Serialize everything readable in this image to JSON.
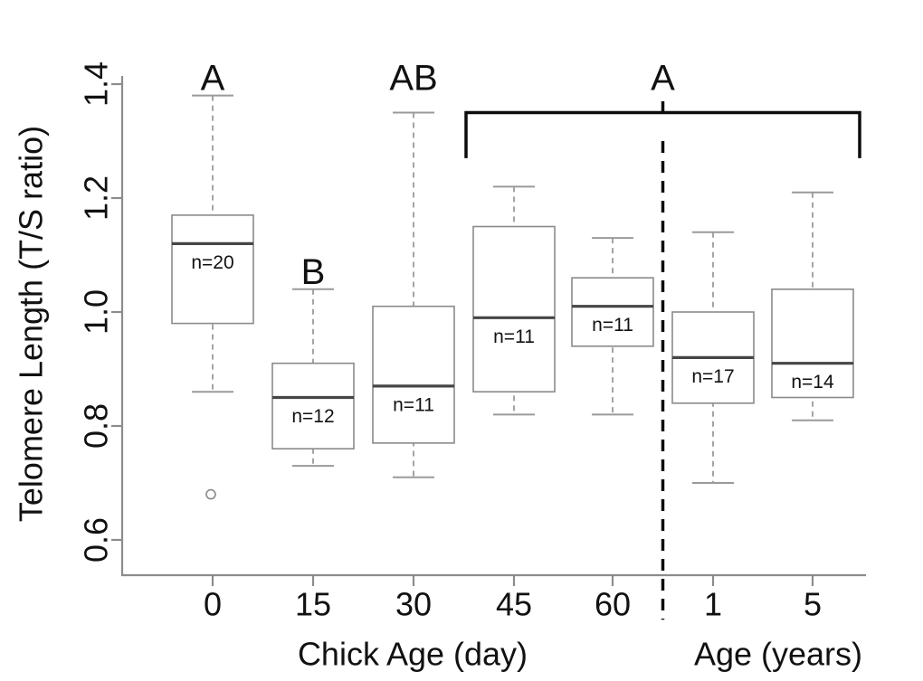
{
  "figure": {
    "background": "#ffffff"
  },
  "chart_data": {
    "type": "boxplot",
    "title": "",
    "ylabel": "Telomere Length (T/S ratio)",
    "xlabel_left": "Chick Age (day)",
    "xlabel_right": "Age (years)",
    "y_ticks": [
      0.6,
      0.8,
      1.0,
      1.2,
      1.4
    ],
    "y_tick_labels": [
      "0.6",
      "0.8",
      "1.0",
      "1.2",
      "1.4"
    ],
    "ylim": [
      0.52,
      1.46
    ],
    "grid": false,
    "legend": null,
    "x_tick_labels": [
      "0",
      "15",
      "30",
      "45",
      "60",
      "1",
      "5"
    ],
    "groups": [
      {
        "name": "chick",
        "axis_title": "Chick Age (day)",
        "box_indices": [
          0,
          1,
          2,
          3,
          4
        ]
      },
      {
        "name": "adult",
        "axis_title": "Age (years)",
        "box_indices": [
          5,
          6
        ]
      }
    ],
    "boxes": [
      {
        "x_label": "0",
        "group": "chick",
        "n_label": "n=20",
        "median": 1.12,
        "q1": 0.98,
        "q3": 1.17,
        "whisker_low": 0.86,
        "whisker_high": 1.38,
        "outliers": [
          0.68
        ]
      },
      {
        "x_label": "15",
        "group": "chick",
        "n_label": "n=12",
        "median": 0.85,
        "q1": 0.76,
        "q3": 0.91,
        "whisker_low": 0.73,
        "whisker_high": 1.04,
        "outliers": []
      },
      {
        "x_label": "30",
        "group": "chick",
        "n_label": "n=11",
        "median": 0.87,
        "q1": 0.77,
        "q3": 1.01,
        "whisker_low": 0.71,
        "whisker_high": 1.35,
        "outliers": []
      },
      {
        "x_label": "45",
        "group": "chick",
        "n_label": "n=11",
        "median": 0.99,
        "q1": 0.86,
        "q3": 1.15,
        "whisker_low": 0.82,
        "whisker_high": 1.22,
        "outliers": []
      },
      {
        "x_label": "60",
        "group": "chick",
        "n_label": "n=11",
        "median": 1.01,
        "q1": 0.94,
        "q3": 1.06,
        "whisker_low": 0.82,
        "whisker_high": 1.13,
        "outliers": []
      },
      {
        "x_label": "1",
        "group": "adult",
        "n_label": "n=17",
        "median": 0.92,
        "q1": 0.84,
        "q3": 1.0,
        "whisker_low": 0.7,
        "whisker_high": 1.14,
        "outliers": []
      },
      {
        "x_label": "5",
        "group": "adult",
        "n_label": "n=14",
        "median": 0.91,
        "q1": 0.85,
        "q3": 1.04,
        "whisker_low": 0.81,
        "whisker_high": 1.21,
        "outliers": []
      }
    ],
    "sig_letters": [
      {
        "text": "A",
        "anchor": "box",
        "box_index": 0,
        "y_value": 1.41
      },
      {
        "text": "B",
        "anchor": "box",
        "box_index": 1,
        "y_value": 1.07
      },
      {
        "text": "AB",
        "anchor": "box",
        "box_index": 2,
        "y_value": 1.41
      },
      {
        "text": "A",
        "anchor": "bracket",
        "y_value": 1.41
      }
    ],
    "bracket": {
      "label": "A",
      "from_box": 3,
      "to_box": 6,
      "top_value": 1.35,
      "arm_bottom_value": 1.27,
      "tick_top_value": 1.37
    },
    "divider": {
      "between_boxes": [
        4,
        5
      ],
      "style": "dashed",
      "top_value": 1.3,
      "bottom_value": 0.46
    },
    "colors": {
      "box_border": "#8a8a8a",
      "box_fill": "#ffffff",
      "median": "#454545",
      "whisker": "#9a9a9a",
      "axis": "#8c8c8c",
      "text": "#111111",
      "annotation": "#0d0d0d"
    }
  }
}
